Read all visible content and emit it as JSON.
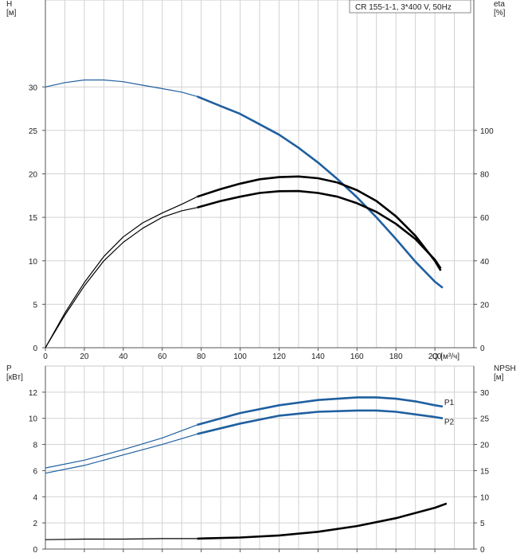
{
  "chart_data": [
    {
      "type": "line",
      "title": "CR 155-1-1, 3*400 V, 50Hz",
      "xlabel": "Q [м³/ч]",
      "ylabel_top": "H",
      "ylabel_unit": "[м]",
      "y2label_top": "eta",
      "y2label_unit": "[%]",
      "xlim": [
        0,
        220
      ],
      "ylim": [
        0,
        40
      ],
      "y2lim": [
        0,
        160
      ],
      "x_ticks": [
        0,
        20,
        40,
        60,
        80,
        100,
        120,
        140,
        160,
        180,
        200
      ],
      "y_ticks": [
        0,
        5,
        10,
        15,
        20,
        25,
        30
      ],
      "y2_ticks": [
        0,
        20,
        40,
        60,
        80,
        100
      ],
      "grid": true,
      "series": [
        {
          "axis": "left",
          "color": "#1f5fa0",
          "x": [
            0,
            10,
            20,
            30,
            40,
            50,
            60,
            70,
            78,
            90,
            100,
            110,
            120,
            130,
            140,
            150,
            160,
            170,
            180,
            190,
            200,
            204
          ],
          "y": [
            30,
            30.5,
            30.8,
            30.8,
            30.6,
            30.2,
            29.8,
            29.4,
            28.9,
            27.8,
            26.9,
            25.7,
            24.5,
            23.0,
            21.3,
            19.4,
            17.3,
            15.0,
            12.5,
            9.9,
            7.6,
            6.9
          ]
        },
        {
          "axis": "right",
          "color": "#000000",
          "x": [
            0,
            10,
            20,
            30,
            40,
            50,
            60,
            70,
            78,
            90,
            100,
            110,
            120,
            130,
            140,
            150,
            160,
            170,
            180,
            190,
            200,
            203
          ],
          "y": [
            0,
            16,
            30,
            42,
            51,
            57.5,
            62,
            66,
            69.5,
            73,
            75.5,
            77.5,
            78.5,
            78.8,
            78.0,
            76.0,
            72.5,
            67.5,
            60.5,
            51.5,
            40.0,
            35.5
          ]
        },
        {
          "axis": "right",
          "color": "#000000",
          "x": [
            0,
            10,
            20,
            30,
            40,
            50,
            60,
            70,
            78,
            90,
            100,
            110,
            120,
            130,
            140,
            150,
            160,
            170,
            180,
            190,
            200,
            203
          ],
          "y": [
            0,
            15,
            28.5,
            40,
            48.5,
            55,
            60,
            63,
            64.5,
            67.5,
            69.5,
            71.2,
            72.0,
            72.1,
            71.2,
            69.5,
            66.5,
            62.5,
            57.0,
            50.0,
            40.5,
            36.5
          ]
        }
      ]
    },
    {
      "type": "line",
      "ylabel_top": "P",
      "ylabel_unit": "[кВт]",
      "y2label_top": "NPSH",
      "y2label_unit": "[м]",
      "xlim": [
        0,
        220
      ],
      "ylim": [
        0,
        14
      ],
      "y2lim": [
        0,
        35
      ],
      "y_ticks": [
        0,
        2,
        4,
        6,
        8,
        10,
        12
      ],
      "y2_ticks": [
        0,
        5,
        10,
        15,
        20,
        25,
        30
      ],
      "grid": true,
      "series": [
        {
          "name": "P1",
          "axis": "left",
          "color": "#1f5fa0",
          "x": [
            0,
            20,
            40,
            60,
            78,
            100,
            120,
            140,
            160,
            170,
            180,
            190,
            200,
            204
          ],
          "y": [
            6.2,
            6.8,
            7.6,
            8.5,
            9.5,
            10.4,
            11.0,
            11.4,
            11.6,
            11.6,
            11.5,
            11.3,
            11.0,
            10.9
          ]
        },
        {
          "name": "P2",
          "axis": "left",
          "color": "#1f5fa0",
          "x": [
            0,
            20,
            40,
            60,
            78,
            100,
            120,
            140,
            160,
            170,
            180,
            190,
            200,
            204
          ],
          "y": [
            5.8,
            6.4,
            7.2,
            8.0,
            8.8,
            9.6,
            10.2,
            10.5,
            10.6,
            10.6,
            10.5,
            10.3,
            10.1,
            10.0
          ]
        },
        {
          "axis": "right",
          "color": "#000000",
          "x": [
            0,
            20,
            40,
            60,
            78,
            100,
            120,
            140,
            160,
            180,
            200,
            206
          ],
          "y": [
            1.8,
            1.9,
            1.9,
            2.0,
            2.0,
            2.2,
            2.6,
            3.3,
            4.4,
            5.9,
            7.9,
            8.7
          ]
        }
      ]
    }
  ]
}
